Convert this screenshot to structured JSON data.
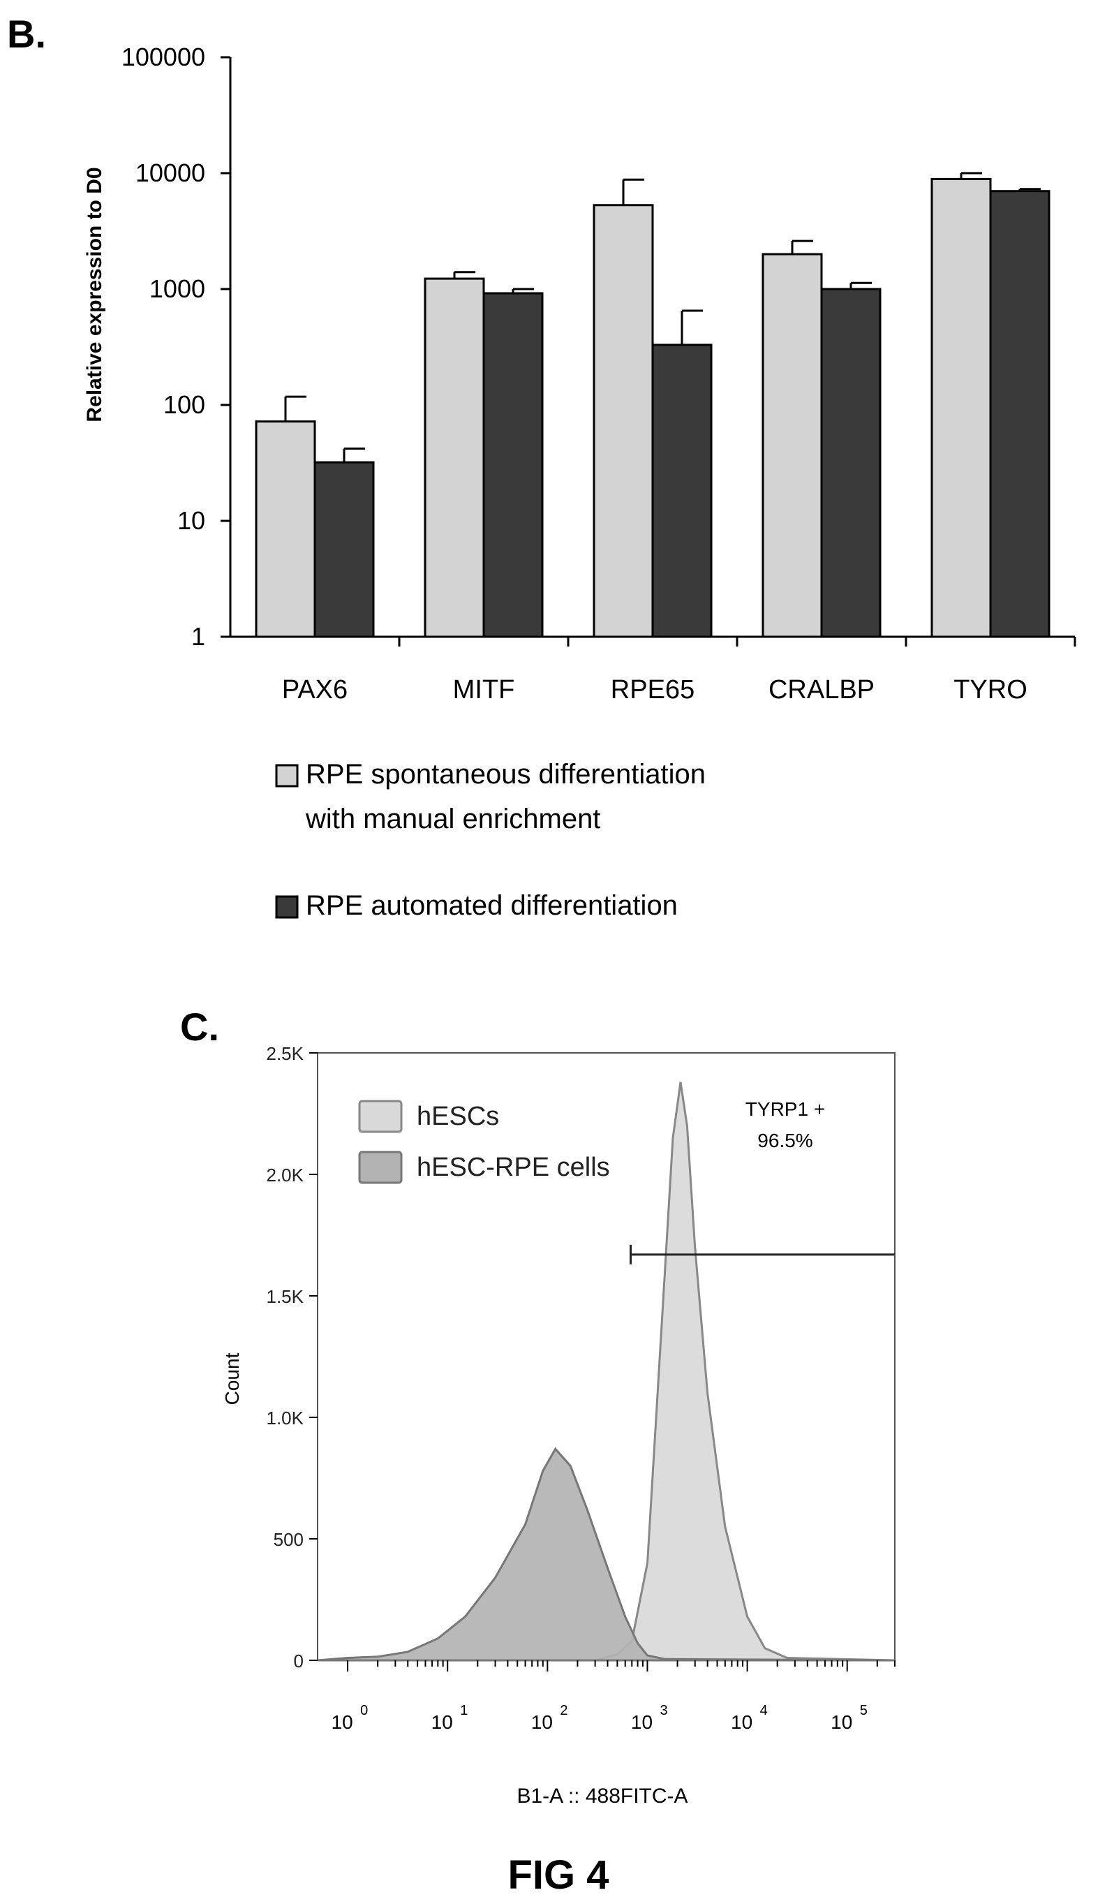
{
  "panel_b": {
    "label": "B."
  },
  "panel_c": {
    "label": "C."
  },
  "figure_caption": "FIG 4",
  "chart_data": [
    {
      "type": "bar",
      "panel": "B.",
      "ylabel": "Relative expression to D0",
      "xlabel": "",
      "yscale": "log",
      "ylim": [
        1,
        100000
      ],
      "yticks": [
        "100000",
        "10000",
        "1000",
        "100",
        "10",
        "1"
      ],
      "categories": [
        "PAX6",
        "MITF",
        "RPE65",
        "CRALBP",
        "TYRO"
      ],
      "series": [
        {
          "name": "RPE spontaneous differentiation with manual enrichment",
          "legend_lines": [
            "RPE spontaneous differentiation",
            "with manual enrichment"
          ],
          "color": "#d3d3d3",
          "values": [
            72,
            1230,
            5300,
            2000,
            8900
          ],
          "error_upper": [
            118,
            1400,
            8800,
            2600,
            10000
          ]
        },
        {
          "name": "RPE automated differentiation",
          "legend_lines": [
            "RPE automated differentiation"
          ],
          "color": "#3a3a3a",
          "values": [
            32,
            920,
            330,
            1000,
            7000
          ],
          "error_upper": [
            42,
            1000,
            650,
            1130,
            7300
          ]
        }
      ],
      "grid": false,
      "legend_position": "bottom"
    },
    {
      "type": "area",
      "panel": "C.",
      "xlabel": "B1-A :: 488FITC-A",
      "ylabel": "Count",
      "xscale": "log",
      "xlim": [
        0.5,
        300000
      ],
      "ylim": [
        0,
        2500
      ],
      "yticks": [
        "0",
        "500",
        "1.0K",
        "1.5K",
        "2.0K",
        "2.5K"
      ],
      "xticks": [
        {
          "base": "10",
          "exp": "0"
        },
        {
          "base": "10",
          "exp": "1"
        },
        {
          "base": "10",
          "exp": "2"
        },
        {
          "base": "10",
          "exp": "3"
        },
        {
          "base": "10",
          "exp": "4"
        },
        {
          "base": "10",
          "exp": "5"
        }
      ],
      "series": [
        {
          "name": "hESCs",
          "color": "#d9d9d9",
          "stroke": "#888888",
          "points": [
            [
              0.5,
              0
            ],
            [
              300,
              0
            ],
            [
              500,
              25
            ],
            [
              700,
              80
            ],
            [
              1000,
              400
            ],
            [
              1400,
              1400
            ],
            [
              1800,
              2150
            ],
            [
              2150,
              2380
            ],
            [
              2500,
              2200
            ],
            [
              3000,
              1700
            ],
            [
              4000,
              1100
            ],
            [
              6000,
              550
            ],
            [
              10000,
              180
            ],
            [
              15000,
              50
            ],
            [
              25000,
              10
            ],
            [
              300000,
              0
            ]
          ]
        },
        {
          "name": "hESC-RPE cells",
          "color": "#b3b3b3",
          "stroke": "#777777",
          "points": [
            [
              0.5,
              0
            ],
            [
              1,
              10
            ],
            [
              2,
              15
            ],
            [
              4,
              35
            ],
            [
              8,
              90
            ],
            [
              15,
              180
            ],
            [
              30,
              340
            ],
            [
              60,
              560
            ],
            [
              90,
              780
            ],
            [
              120,
              870
            ],
            [
              170,
              800
            ],
            [
              250,
              620
            ],
            [
              400,
              380
            ],
            [
              600,
              180
            ],
            [
              800,
              70
            ],
            [
              1000,
              20
            ],
            [
              1500,
              5
            ],
            [
              300000,
              0
            ]
          ]
        }
      ],
      "gate": {
        "label": "TYRP1 +",
        "percent": "96.5%",
        "x_from": 680,
        "x_to": 300000,
        "y": 1670
      },
      "grid": false,
      "legend_position": "top-left"
    }
  ]
}
